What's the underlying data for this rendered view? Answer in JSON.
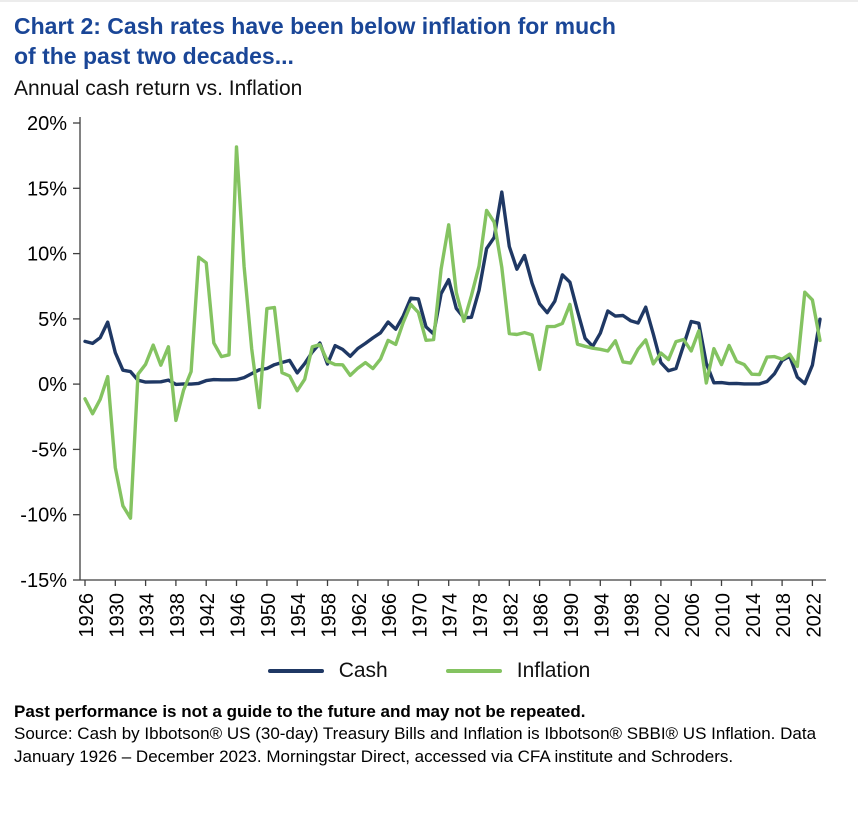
{
  "header": {
    "title_line1": "Chart 2: Cash rates have been below inflation for much",
    "title_line2": "of the past two decades...",
    "subtitle": "Annual cash return vs. Inflation"
  },
  "colors": {
    "title_blue": "#1a4697",
    "cash_navy": "#1f3864",
    "inflation_green": "#84c361",
    "axis_grey": "#3f3f3f"
  },
  "chart_data": {
    "type": "line",
    "title": "Annual cash return vs. Inflation",
    "xlabel": "",
    "ylabel": "",
    "ylim": [
      -15,
      20
    ],
    "ytick_step": 5,
    "ytick_suffix": "%",
    "xtick_start": 1926,
    "xtick_step": 4,
    "grid": false,
    "legend_position": "bottom",
    "axis_color": "#3f3f3f",
    "x": [
      1926,
      1927,
      1928,
      1929,
      1930,
      1931,
      1932,
      1933,
      1934,
      1935,
      1936,
      1937,
      1938,
      1939,
      1940,
      1941,
      1942,
      1943,
      1944,
      1945,
      1946,
      1947,
      1948,
      1949,
      1950,
      1951,
      1952,
      1953,
      1954,
      1955,
      1956,
      1957,
      1958,
      1959,
      1960,
      1961,
      1962,
      1963,
      1964,
      1965,
      1966,
      1967,
      1968,
      1969,
      1970,
      1971,
      1972,
      1973,
      1974,
      1975,
      1976,
      1977,
      1978,
      1979,
      1980,
      1981,
      1982,
      1983,
      1984,
      1985,
      1986,
      1987,
      1988,
      1989,
      1990,
      1991,
      1992,
      1993,
      1994,
      1995,
      1996,
      1997,
      1998,
      1999,
      2000,
      2001,
      2002,
      2003,
      2004,
      2005,
      2006,
      2007,
      2008,
      2009,
      2010,
      2011,
      2012,
      2013,
      2014,
      2015,
      2016,
      2017,
      2018,
      2019,
      2020,
      2021,
      2022,
      2023
    ],
    "series": [
      {
        "name": "Cash",
        "color": "#1f3864",
        "values": [
          3.27,
          3.12,
          3.56,
          4.75,
          2.41,
          1.07,
          0.96,
          0.3,
          0.16,
          0.17,
          0.18,
          0.31,
          -0.02,
          0.02,
          0.0,
          0.06,
          0.27,
          0.35,
          0.33,
          0.33,
          0.35,
          0.5,
          0.81,
          1.1,
          1.2,
          1.49,
          1.66,
          1.82,
          0.86,
          1.57,
          2.46,
          3.14,
          1.54,
          2.95,
          2.66,
          2.13,
          2.73,
          3.12,
          3.54,
          3.93,
          4.76,
          4.21,
          5.21,
          6.58,
          6.52,
          4.39,
          3.84,
          6.93,
          8.0,
          5.8,
          5.08,
          5.12,
          7.18,
          10.38,
          11.24,
          14.71,
          10.54,
          8.8,
          9.85,
          7.72,
          6.16,
          5.47,
          6.35,
          8.37,
          7.81,
          5.6,
          3.51,
          2.9,
          3.9,
          5.6,
          5.21,
          5.26,
          4.86,
          4.68,
          5.89,
          3.83,
          1.65,
          1.02,
          1.2,
          2.98,
          4.8,
          4.66,
          1.6,
          0.1,
          0.12,
          0.04,
          0.06,
          0.02,
          0.02,
          0.02,
          0.2,
          0.8,
          1.81,
          2.14,
          0.54,
          0.04,
          1.46,
          4.97
        ]
      },
      {
        "name": "Inflation",
        "color": "#84c361",
        "values": [
          -1.12,
          -2.26,
          -1.16,
          0.58,
          -6.4,
          -9.32,
          -10.27,
          0.76,
          1.52,
          2.99,
          1.45,
          2.86,
          -2.78,
          -0.48,
          0.96,
          9.72,
          9.29,
          3.16,
          2.11,
          2.25,
          18.16,
          9.01,
          2.71,
          -1.8,
          5.79,
          5.87,
          0.88,
          0.62,
          -0.5,
          0.37,
          2.86,
          3.02,
          1.76,
          1.5,
          1.48,
          0.67,
          1.22,
          1.65,
          1.19,
          1.92,
          3.35,
          3.04,
          4.72,
          6.11,
          5.49,
          3.36,
          3.41,
          8.8,
          12.2,
          7.01,
          4.81,
          6.77,
          9.03,
          13.31,
          12.4,
          8.94,
          3.87,
          3.8,
          3.95,
          3.77,
          1.13,
          4.41,
          4.42,
          4.65,
          6.11,
          3.06,
          2.9,
          2.75,
          2.67,
          2.54,
          3.32,
          1.7,
          1.61,
          2.68,
          3.39,
          1.55,
          2.38,
          1.88,
          3.26,
          3.42,
          2.54,
          4.08,
          0.09,
          2.72,
          1.5,
          2.96,
          1.74,
          1.5,
          0.76,
          0.73,
          2.07,
          2.11,
          1.91,
          2.29,
          1.36,
          7.04,
          6.45,
          3.35
        ]
      }
    ]
  },
  "footer": {
    "disclaimer": "Past performance is not a guide to the future and may not be repeated.",
    "source": "Source: Cash by Ibbotson® US (30-day) Treasury Bills and Inflation is Ibbotson® SBBI® US Inflation. Data January 1926 – December 2023. Morningstar Direct, accessed via CFA institute and Schroders."
  }
}
